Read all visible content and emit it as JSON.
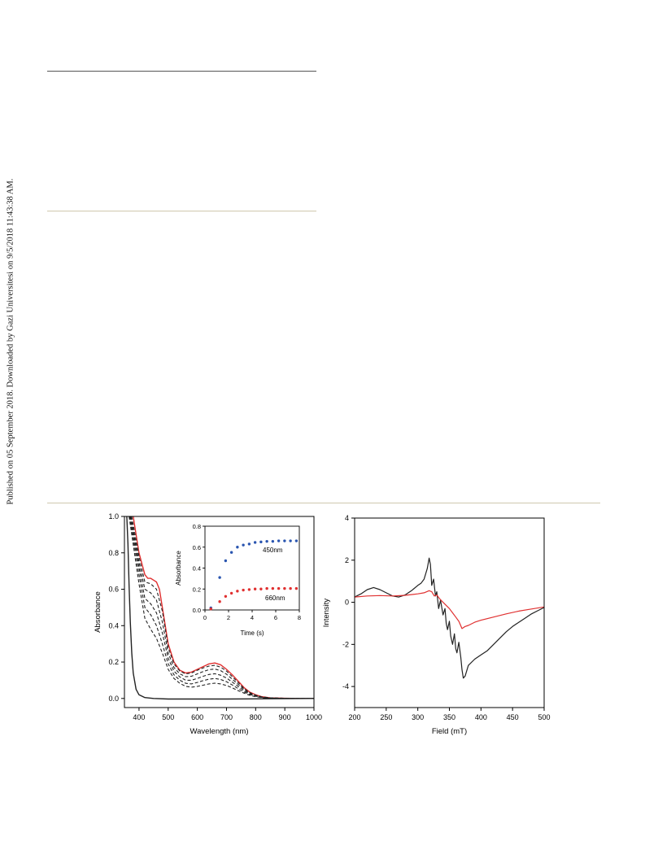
{
  "side_note": "Published on 05 September 2018. Downloaded by Gazi Universitesi on 9/5/2018 11:43:38 AM.",
  "colors": {
    "rule_dark": "#555555",
    "rule_light": "#cfc8ae",
    "red": "#e03030",
    "black": "#222222",
    "blue": "#2a55b0"
  },
  "chart_data": [
    {
      "type": "line",
      "xlabel": "Wavelength (nm)",
      "ylabel": "Absorbance",
      "xlim": [
        350,
        1000
      ],
      "ylim": [
        -0.05,
        1.0
      ],
      "xticks": [
        400,
        500,
        600,
        700,
        800,
        900,
        1000
      ],
      "yticks": [
        0.0,
        0.2,
        0.4,
        0.6,
        0.8,
        1.0
      ],
      "ytick_labels": [
        "0.0",
        "0.2",
        "0.4",
        "0.6",
        "0.8",
        "1.0"
      ],
      "series": [
        {
          "style": "solid-red",
          "x": [
            380,
            400,
            420,
            430,
            440,
            450,
            460,
            470,
            480,
            500,
            520,
            540,
            560,
            580,
            600,
            620,
            640,
            660,
            680,
            700,
            720,
            740,
            760,
            780,
            800,
            820,
            850,
            900,
            950,
            1000
          ],
          "y": [
            1.0,
            0.8,
            0.68,
            0.66,
            0.66,
            0.65,
            0.64,
            0.6,
            0.5,
            0.3,
            0.2,
            0.155,
            0.14,
            0.145,
            0.16,
            0.175,
            0.19,
            0.195,
            0.185,
            0.16,
            0.13,
            0.095,
            0.06,
            0.035,
            0.02,
            0.01,
            0.003,
            0.001,
            0.0,
            0.0
          ]
        },
        {
          "style": "dashed",
          "x": [
            375,
            400,
            420,
            440,
            460,
            480,
            500,
            520,
            540,
            560,
            580,
            600,
            620,
            640,
            660,
            680,
            700,
            720,
            740,
            760,
            780,
            800,
            820,
            850,
            900,
            950,
            1000
          ],
          "y": [
            1.0,
            0.78,
            0.64,
            0.63,
            0.6,
            0.48,
            0.28,
            0.19,
            0.15,
            0.135,
            0.14,
            0.155,
            0.168,
            0.178,
            0.182,
            0.172,
            0.15,
            0.12,
            0.088,
            0.055,
            0.032,
            0.018,
            0.009,
            0.003,
            0.001,
            0.0,
            0.0
          ]
        },
        {
          "style": "dashed",
          "x": [
            372,
            400,
            420,
            440,
            460,
            480,
            500,
            520,
            540,
            560,
            580,
            600,
            620,
            640,
            660,
            680,
            700,
            720,
            740,
            760,
            780,
            800,
            820,
            850,
            900,
            950,
            1000
          ],
          "y": [
            1.0,
            0.75,
            0.6,
            0.58,
            0.54,
            0.42,
            0.25,
            0.17,
            0.135,
            0.12,
            0.122,
            0.135,
            0.148,
            0.158,
            0.162,
            0.153,
            0.133,
            0.106,
            0.078,
            0.05,
            0.029,
            0.016,
            0.008,
            0.003,
            0.001,
            0.0,
            0.0
          ]
        },
        {
          "style": "dashed",
          "x": [
            370,
            400,
            420,
            440,
            460,
            480,
            500,
            520,
            540,
            560,
            580,
            600,
            620,
            640,
            660,
            680,
            700,
            720,
            740,
            760,
            780,
            800,
            820,
            850,
            900,
            950,
            1000
          ],
          "y": [
            1.0,
            0.72,
            0.55,
            0.52,
            0.47,
            0.36,
            0.22,
            0.15,
            0.118,
            0.1,
            0.1,
            0.11,
            0.122,
            0.132,
            0.136,
            0.128,
            0.112,
            0.09,
            0.066,
            0.043,
            0.025,
            0.014,
            0.007,
            0.002,
            0.001,
            0.0,
            0.0
          ]
        },
        {
          "style": "dashed",
          "x": [
            368,
            400,
            420,
            440,
            460,
            480,
            500,
            520,
            540,
            560,
            580,
            600,
            620,
            640,
            660,
            680,
            700,
            720,
            740,
            760,
            780,
            800,
            820,
            850,
            900,
            950,
            1000
          ],
          "y": [
            1.0,
            0.68,
            0.5,
            0.46,
            0.4,
            0.3,
            0.19,
            0.13,
            0.1,
            0.083,
            0.08,
            0.088,
            0.098,
            0.106,
            0.11,
            0.104,
            0.092,
            0.074,
            0.054,
            0.036,
            0.021,
            0.012,
            0.006,
            0.002,
            0.001,
            0.0,
            0.0
          ]
        },
        {
          "style": "dashed",
          "x": [
            366,
            400,
            420,
            440,
            460,
            480,
            500,
            520,
            540,
            560,
            580,
            600,
            620,
            640,
            660,
            680,
            700,
            720,
            740,
            760,
            780,
            800,
            820,
            850,
            900,
            950,
            1000
          ],
          "y": [
            1.0,
            0.63,
            0.44,
            0.38,
            0.33,
            0.25,
            0.16,
            0.11,
            0.083,
            0.066,
            0.062,
            0.066,
            0.073,
            0.08,
            0.084,
            0.08,
            0.071,
            0.058,
            0.043,
            0.029,
            0.017,
            0.01,
            0.005,
            0.002,
            0.0,
            0.0,
            0.0
          ]
        },
        {
          "style": "solid-black",
          "x": [
            358,
            362,
            366,
            370,
            375,
            380,
            390,
            400,
            420,
            450,
            500,
            600,
            700,
            800,
            900,
            1000
          ],
          "y": [
            1.0,
            0.85,
            0.62,
            0.42,
            0.25,
            0.14,
            0.05,
            0.02,
            0.005,
            0.0,
            -0.003,
            -0.003,
            -0.003,
            -0.002,
            -0.001,
            0.0
          ]
        }
      ],
      "inset": {
        "type": "scatter",
        "xlabel": "Time (s)",
        "ylabel": "Absorbance",
        "xlim": [
          0,
          8
        ],
        "ylim": [
          0,
          0.8
        ],
        "xticks": [
          0,
          2,
          4,
          6,
          8
        ],
        "yticks": [
          0.0,
          0.2,
          0.4,
          0.6,
          0.8
        ],
        "ytick_labels": [
          "0.0",
          "0.2",
          "0.4",
          "0.6",
          "0.8"
        ],
        "series": [
          {
            "name": "450nm",
            "color": "#2a55b0",
            "x": [
              0.5,
              1.25,
              1.75,
              2.25,
              2.75,
              3.25,
              3.75,
              4.25,
              4.75,
              5.25,
              5.75,
              6.25,
              6.75,
              7.25,
              7.75
            ],
            "y": [
              0.02,
              0.31,
              0.47,
              0.55,
              0.6,
              0.62,
              0.63,
              0.645,
              0.65,
              0.655,
              0.655,
              0.66,
              0.66,
              0.66,
              0.66
            ]
          },
          {
            "name": "660nm",
            "color": "#e03030",
            "x": [
              0.5,
              1.25,
              1.75,
              2.25,
              2.75,
              3.25,
              3.75,
              4.25,
              4.75,
              5.25,
              5.75,
              6.25,
              6.75,
              7.25,
              7.75
            ],
            "y": [
              0.01,
              0.08,
              0.13,
              0.16,
              0.18,
              0.19,
              0.195,
              0.2,
              0.2,
              0.205,
              0.205,
              0.205,
              0.205,
              0.205,
              0.205
            ]
          }
        ]
      }
    },
    {
      "type": "line",
      "xlabel": "Field (mT)",
      "ylabel": "Intensity",
      "xlim": [
        200,
        500
      ],
      "ylim": [
        -5,
        4
      ],
      "xticks": [
        200,
        250,
        300,
        350,
        400,
        450,
        500
      ],
      "yticks": [
        -4,
        -2,
        0,
        2,
        4
      ],
      "series": [
        {
          "style": "solid-black",
          "x": [
            200,
            210,
            220,
            230,
            240,
            250,
            260,
            270,
            280,
            290,
            300,
            305,
            310,
            315,
            318,
            320,
            322,
            325,
            328,
            330,
            333,
            336,
            340,
            343,
            345,
            347,
            350,
            352,
            355,
            358,
            360,
            362,
            365,
            368,
            370,
            372,
            375,
            380,
            390,
            400,
            410,
            420,
            430,
            440,
            450,
            460,
            470,
            480,
            490,
            500
          ],
          "y": [
            0.25,
            0.4,
            0.6,
            0.7,
            0.6,
            0.45,
            0.3,
            0.25,
            0.35,
            0.55,
            0.8,
            0.9,
            1.1,
            1.6,
            2.1,
            1.8,
            0.8,
            1.1,
            0.3,
            0.5,
            -0.3,
            0.1,
            -0.6,
            -0.3,
            -1.0,
            -1.3,
            -0.9,
            -1.6,
            -2.0,
            -1.5,
            -2.2,
            -2.4,
            -1.9,
            -2.6,
            -3.2,
            -3.6,
            -3.5,
            -3.0,
            -2.7,
            -2.5,
            -2.3,
            -2.0,
            -1.7,
            -1.4,
            -1.15,
            -0.95,
            -0.75,
            -0.55,
            -0.4,
            -0.25
          ]
        },
        {
          "style": "solid-red",
          "x": [
            200,
            220,
            240,
            260,
            280,
            300,
            310,
            318,
            322,
            326,
            330,
            335,
            340,
            345,
            350,
            355,
            360,
            365,
            370,
            375,
            380,
            390,
            400,
            420,
            440,
            460,
            480,
            500
          ],
          "y": [
            0.25,
            0.3,
            0.32,
            0.3,
            0.33,
            0.4,
            0.45,
            0.55,
            0.5,
            0.3,
            0.35,
            0.15,
            0.0,
            -0.15,
            -0.3,
            -0.5,
            -0.7,
            -0.9,
            -1.25,
            -1.15,
            -1.1,
            -0.95,
            -0.85,
            -0.7,
            -0.55,
            -0.42,
            -0.32,
            -0.22
          ]
        }
      ]
    }
  ]
}
